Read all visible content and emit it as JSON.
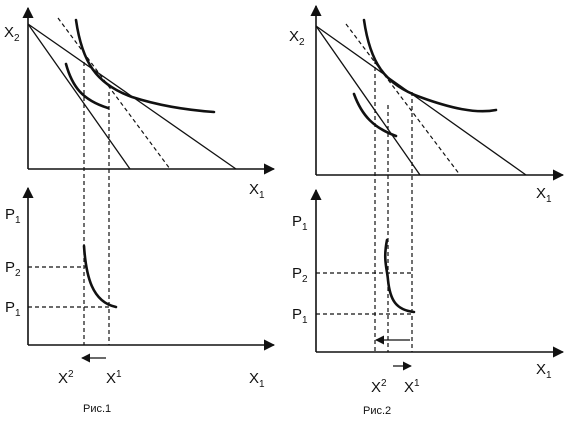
{
  "fig1": {
    "caption": "Рис.1",
    "top_y_axis": {
      "main": "X",
      "sub": "2"
    },
    "top_x_axis": {
      "main": "X",
      "sub": "1"
    },
    "bottom_y_axis": {
      "main": "P",
      "sub": "1"
    },
    "bottom_x_axis": {
      "main": "X",
      "sub": "1"
    },
    "price_high": {
      "main": "P",
      "sub": "2"
    },
    "price_low": {
      "main": "P",
      "sub": "1"
    },
    "qty_left": {
      "main": "X",
      "sup": "2"
    },
    "qty_right": {
      "main": "X",
      "sup": "1"
    },
    "arrow_direction": "left"
  },
  "fig2": {
    "caption": "Рис.2",
    "top_y_axis": {
      "main": "X",
      "sub": "2"
    },
    "top_x_axis": {
      "main": "X",
      "sub": "1"
    },
    "bottom_y_axis": {
      "main": "P",
      "sub": "1"
    },
    "bottom_x_axis": {
      "main": "X",
      "sub": "1"
    },
    "price_high": {
      "main": "P",
      "sub": "2"
    },
    "price_low": {
      "main": "P",
      "sub": "1"
    },
    "qty_left": {
      "main": "X",
      "sup": "2"
    },
    "qty_right": {
      "main": "X",
      "sup": "1"
    },
    "arrow_directions": [
      "left",
      "right"
    ]
  }
}
